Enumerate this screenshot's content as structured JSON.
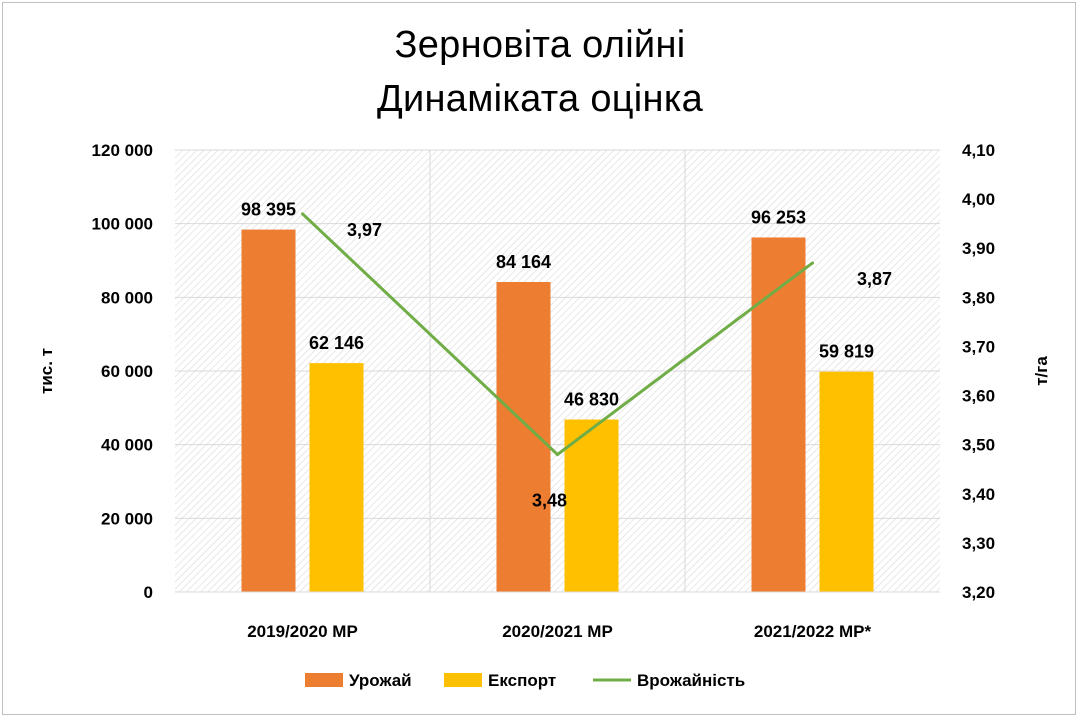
{
  "chart_data": {
    "type": "bar",
    "title": "Зерновіта олійні",
    "subtitle": "Динаміката оцінка",
    "categories": [
      "2019/2020 МР",
      "2020/2021 МР",
      "2021/2022 МР*"
    ],
    "series": [
      {
        "name": "Урожай",
        "type": "bar",
        "axis": "left",
        "values": [
          98395,
          84164,
          96253
        ],
        "labels": [
          "98 395",
          "84 164",
          "96 253"
        ],
        "color": "#ED7D31"
      },
      {
        "name": "Експорт",
        "type": "bar",
        "axis": "left",
        "values": [
          62146,
          46830,
          59819
        ],
        "labels": [
          "62 146",
          "46 830",
          "59 819"
        ],
        "color": "#FFC000"
      },
      {
        "name": "Врожайність",
        "type": "line",
        "axis": "right",
        "values": [
          3.97,
          3.48,
          3.87
        ],
        "labels": [
          "3,97",
          "3,48",
          "3,87"
        ],
        "color": "#70AD47"
      }
    ],
    "ylabel": "тис. т",
    "y2label": "т/га",
    "ylim": [
      0,
      120000
    ],
    "y2lim": [
      3.2,
      4.1
    ],
    "y_ticks": [
      0,
      20000,
      40000,
      60000,
      80000,
      100000,
      120000
    ],
    "y_tick_labels": [
      "0",
      "20 000",
      "40 000",
      "60 000",
      "80 000",
      "100 000",
      "120 000"
    ],
    "y2_ticks": [
      3.2,
      3.3,
      3.4,
      3.5,
      3.6,
      3.7,
      3.8,
      3.9,
      4.0,
      4.1
    ],
    "y2_tick_labels": [
      "3,20",
      "3,30",
      "3,40",
      "3,50",
      "3,60",
      "3,70",
      "3,80",
      "3,90",
      "4,00",
      "4,10"
    ],
    "grid": true,
    "legend_position": "bottom"
  }
}
